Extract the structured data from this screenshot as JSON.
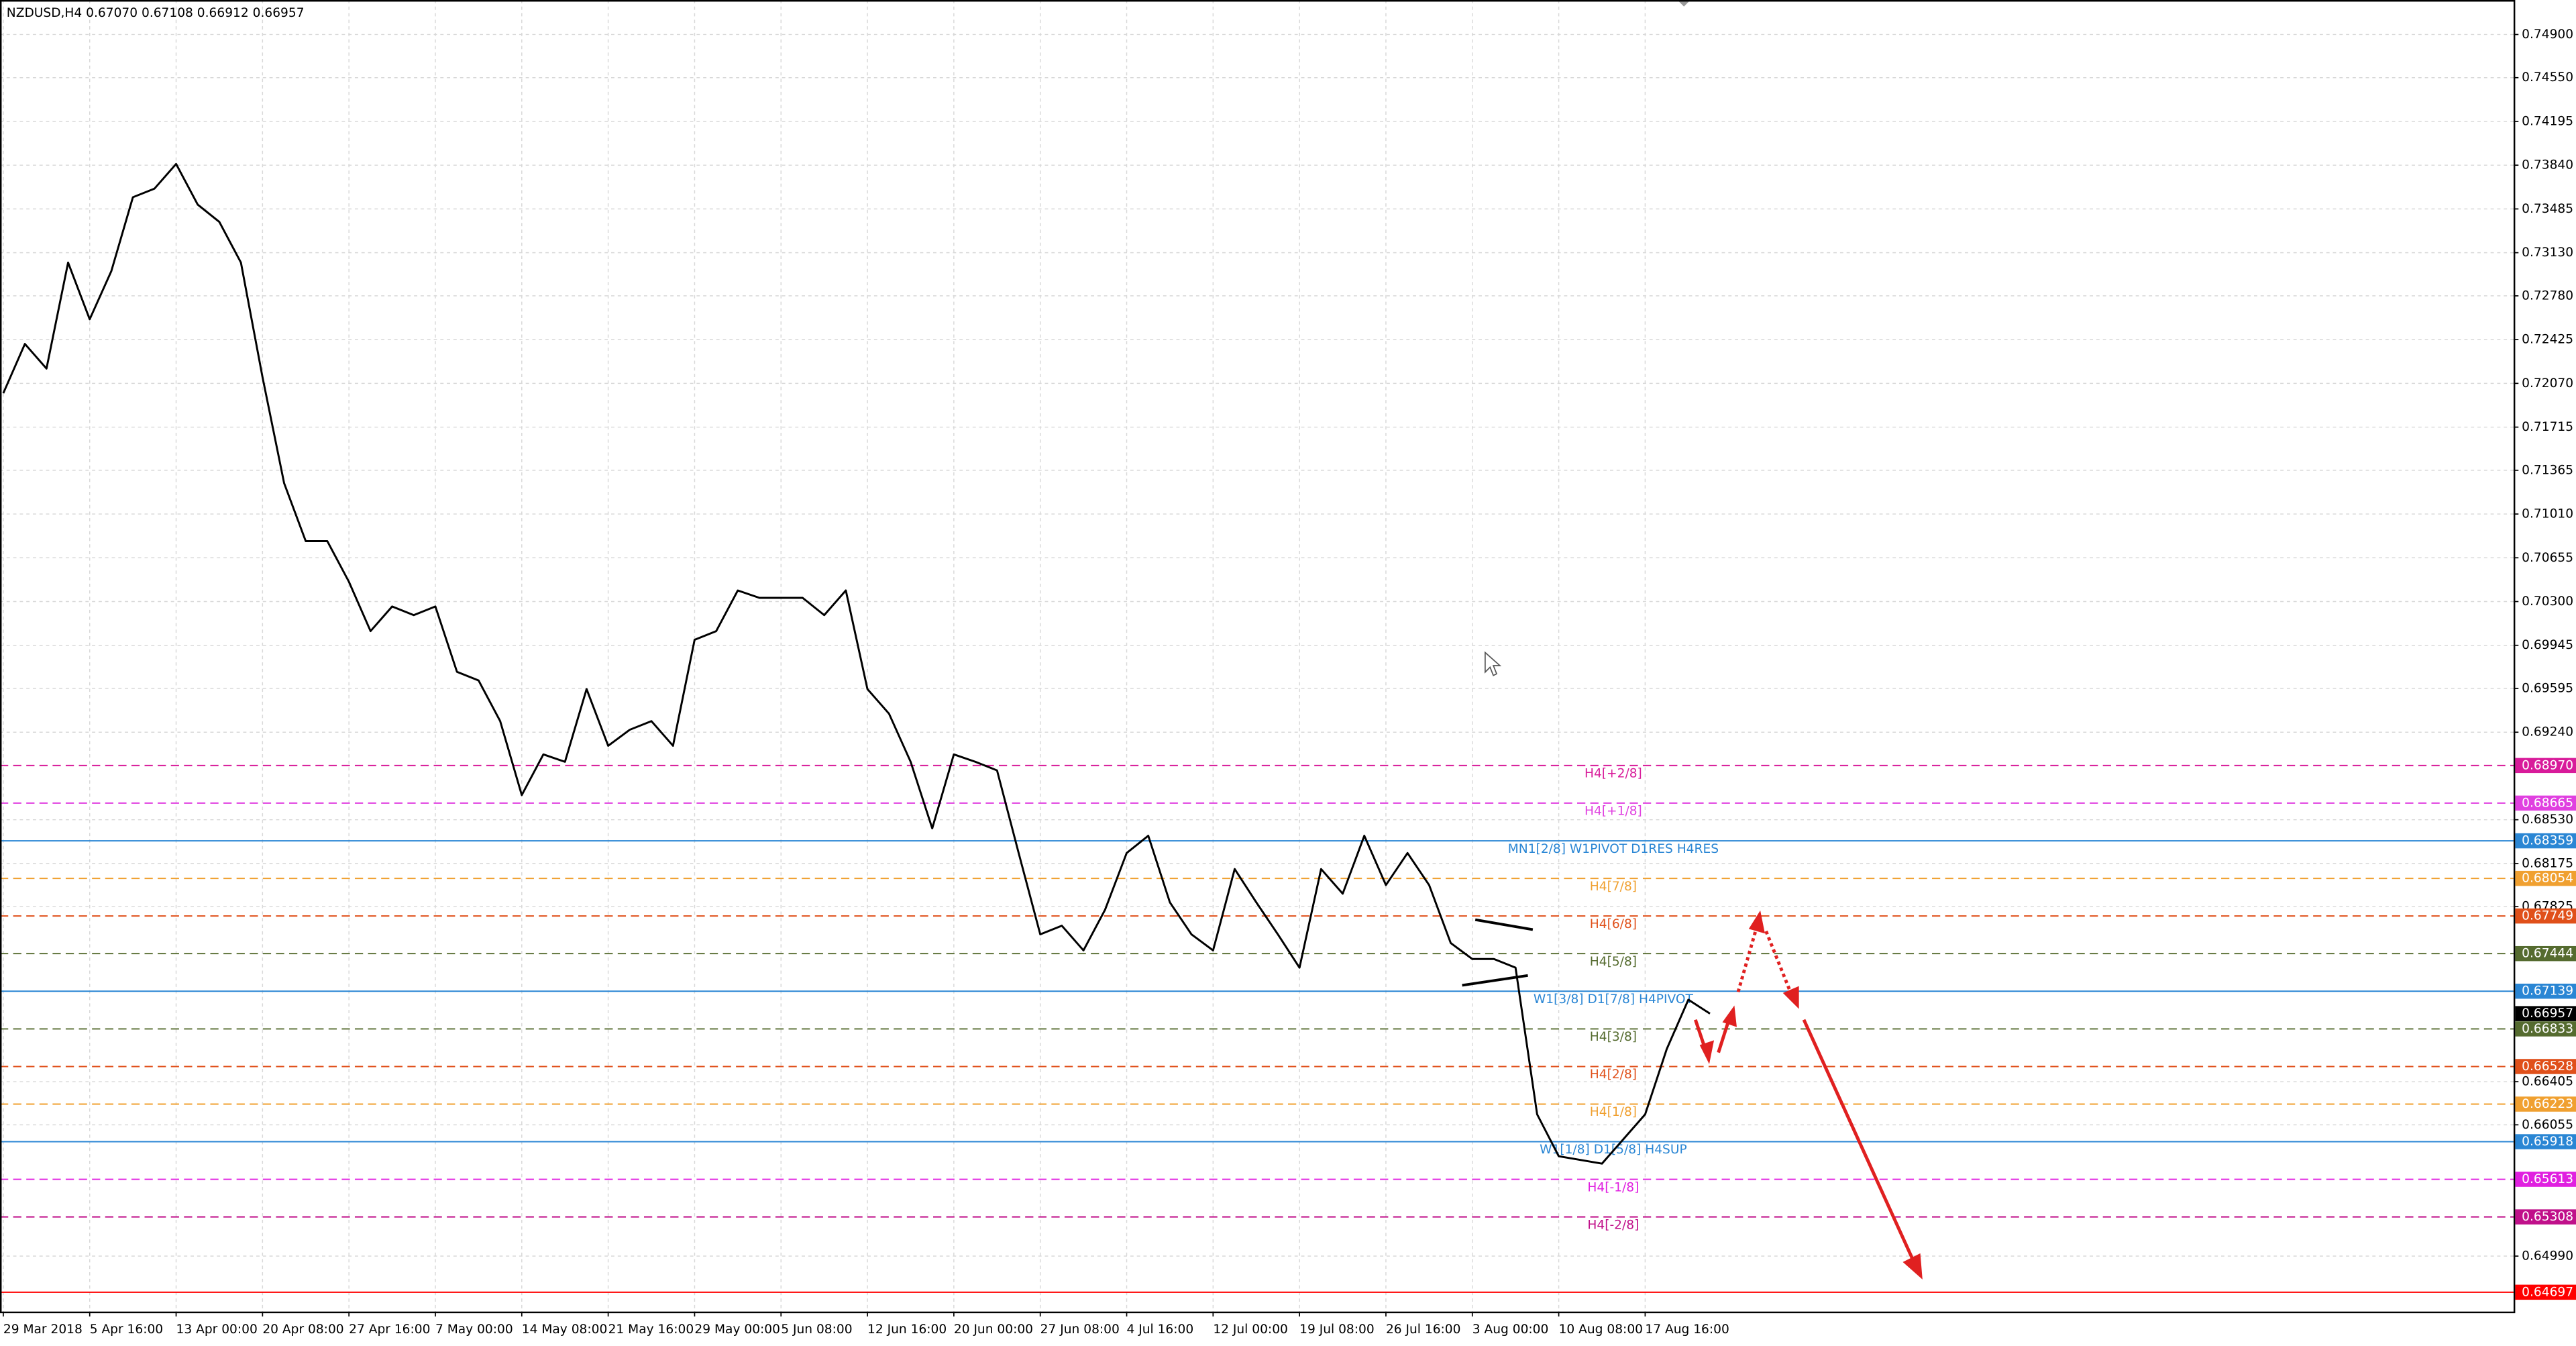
{
  "chart_data": {
    "type": "line",
    "title": "NZDUSD,H4  0.67070 0.67108 0.66912 0.66957",
    "color": "#000000",
    "grid": true,
    "categories": [
      "29 Mar 2018",
      null,
      null,
      null,
      "5 Apr 16:00",
      null,
      null,
      null,
      "13 Apr 00:00",
      null,
      null,
      null,
      "20 Apr 08:00",
      null,
      null,
      null,
      "27 Apr 16:00",
      null,
      null,
      null,
      "7 May 00:00",
      null,
      null,
      null,
      "14 May 08:00",
      null,
      null,
      null,
      "21 May 16:00",
      null,
      null,
      null,
      "29 May 00:00",
      null,
      null,
      null,
      "5 Jun 08:00",
      null,
      null,
      null,
      "12 Jun 16:00",
      null,
      null,
      null,
      "20 Jun 00:00",
      null,
      null,
      null,
      "27 Jun 08:00",
      null,
      null,
      null,
      "4 Jul 16:00",
      null,
      null,
      null,
      "12 Jul 00:00",
      null,
      null,
      null,
      "19 Jul 08:00",
      null,
      null,
      null,
      "26 Jul 16:00",
      null,
      null,
      null,
      "3 Aug 00:00",
      null,
      null,
      null,
      "10 Aug 08:00",
      null,
      null,
      null,
      "17 Aug 16:00",
      null,
      null,
      null
    ],
    "values": [
      0.7199,
      0.7239,
      0.7219,
      0.7305,
      0.7259,
      0.7298,
      0.7358,
      0.7365,
      0.7385,
      0.7352,
      0.7338,
      0.7305,
      0.7212,
      0.7126,
      0.7079,
      0.7079,
      0.7046,
      0.7006,
      0.7026,
      0.7019,
      0.7026,
      0.6973,
      0.6966,
      0.6933,
      0.6873,
      0.6906,
      0.69,
      0.6959,
      0.6913,
      0.6926,
      0.6933,
      0.6913,
      0.6999,
      0.7006,
      0.7039,
      0.7033,
      0.7033,
      0.7033,
      0.7019,
      0.7039,
      0.6959,
      0.6939,
      0.69,
      0.6846,
      0.6906,
      0.69,
      0.6893,
      0.6826,
      0.676,
      0.6767,
      0.6747,
      0.678,
      0.6826,
      0.684,
      0.6786,
      0.676,
      0.6747,
      0.6813,
      0.6786,
      0.676,
      0.6733,
      0.6813,
      0.6793,
      0.684,
      0.68,
      0.6826,
      0.68,
      0.6753,
      0.674,
      0.674,
      0.6733,
      0.6614,
      0.658,
      0.6577,
      0.6574,
      0.6594,
      0.6614,
      0.6667,
      0.6707,
      0.66957
    ],
    "ylim": [
      0.6454,
      0.7518
    ],
    "yticks": [
      {
        "value": 0.749,
        "label": "0.74900"
      },
      {
        "value": 0.7455,
        "label": "0.74550"
      },
      {
        "value": 0.74195,
        "label": "0.74195"
      },
      {
        "value": 0.7384,
        "label": "0.73840"
      },
      {
        "value": 0.73485,
        "label": "0.73485"
      },
      {
        "value": 0.7313,
        "label": "0.73130"
      },
      {
        "value": 0.7278,
        "label": "0.72780"
      },
      {
        "value": 0.72425,
        "label": "0.72425"
      },
      {
        "value": 0.7207,
        "label": "0.72070"
      },
      {
        "value": 0.71715,
        "label": "0.71715"
      },
      {
        "value": 0.71365,
        "label": "0.71365"
      },
      {
        "value": 0.7101,
        "label": "0.71010"
      },
      {
        "value": 0.70655,
        "label": "0.70655"
      },
      {
        "value": 0.703,
        "label": "0.70300"
      },
      {
        "value": 0.69945,
        "label": "0.69945"
      },
      {
        "value": 0.69595,
        "label": "0.69595"
      },
      {
        "value": 0.6924,
        "label": "0.69240"
      },
      {
        "value": 0.6853,
        "label": "0.68530"
      },
      {
        "value": 0.68175,
        "label": "0.68175"
      },
      {
        "value": 0.67825,
        "label": "0.67825"
      },
      {
        "value": 0.66405,
        "label": "0.66405"
      },
      {
        "value": 0.66055,
        "label": "0.66055"
      },
      {
        "value": 0.6499,
        "label": "0.64990"
      }
    ],
    "levels": [
      {
        "price": {
          "value": 0.6897,
          "label": "0.68970"
        },
        "name": "H4[+2/8]",
        "color": "#d81b9a",
        "style": "dashed"
      },
      {
        "price": {
          "value": 0.68665,
          "label": "0.68665"
        },
        "name": "H4[+1/8]",
        "color": "#e040e0",
        "style": "dashed"
      },
      {
        "price": {
          "value": 0.68359,
          "label": "0.68359"
        },
        "name": "MN1[2/8] W1PIVOT D1RES H4RES",
        "color": "#2a86d4",
        "style": "solid"
      },
      {
        "price": {
          "value": 0.68054,
          "label": "0.68054"
        },
        "name": "H4[7/8]",
        "color": "#f0a030",
        "style": "dashed"
      },
      {
        "price": {
          "value": 0.67749,
          "label": "0.67749"
        },
        "name": "H4[6/8]",
        "color": "#e0501a",
        "style": "dashed"
      },
      {
        "price": {
          "value": 0.67444,
          "label": "0.67444"
        },
        "name": "H4[5/8]",
        "color": "#556b2f",
        "style": "dashed"
      },
      {
        "price": {
          "value": 0.67139,
          "label": "0.67139"
        },
        "name": "W1[3/8] D1[7/8] H4PIVOT",
        "color": "#2a86d4",
        "style": "solid"
      },
      {
        "price": {
          "value": 0.66957,
          "label": "0.66957"
        },
        "color": "#000000",
        "style": "none"
      },
      {
        "price": {
          "value": 0.66833,
          "label": "0.66833"
        },
        "name": "H4[3/8]",
        "color": "#556b2f",
        "style": "dashed"
      },
      {
        "price": {
          "value": 0.66528,
          "label": "0.66528"
        },
        "name": "H4[2/8]",
        "color": "#e0501a",
        "style": "dashed"
      },
      {
        "price": {
          "value": 0.66223,
          "label": "0.66223"
        },
        "name": "H4[1/8]",
        "color": "#f0a030",
        "style": "dashed"
      },
      {
        "price": {
          "value": 0.65918,
          "label": "0.65918"
        },
        "name": "W1[1/8] D1[5/8] H4SUP",
        "color": "#2a86d4",
        "style": "solid"
      },
      {
        "price": {
          "value": 0.65613,
          "label": "0.65613"
        },
        "name": "H4[-1/8]",
        "color": "#e020e0",
        "style": "dashed"
      },
      {
        "price": {
          "value": 0.65308,
          "label": "0.65308"
        },
        "name": "H4[-2/8]",
        "color": "#c0108a",
        "style": "dashed"
      },
      {
        "price": {
          "value": 0.64697,
          "label": "0.64697"
        },
        "color": "#ff0000",
        "style": "solid"
      }
    ]
  }
}
